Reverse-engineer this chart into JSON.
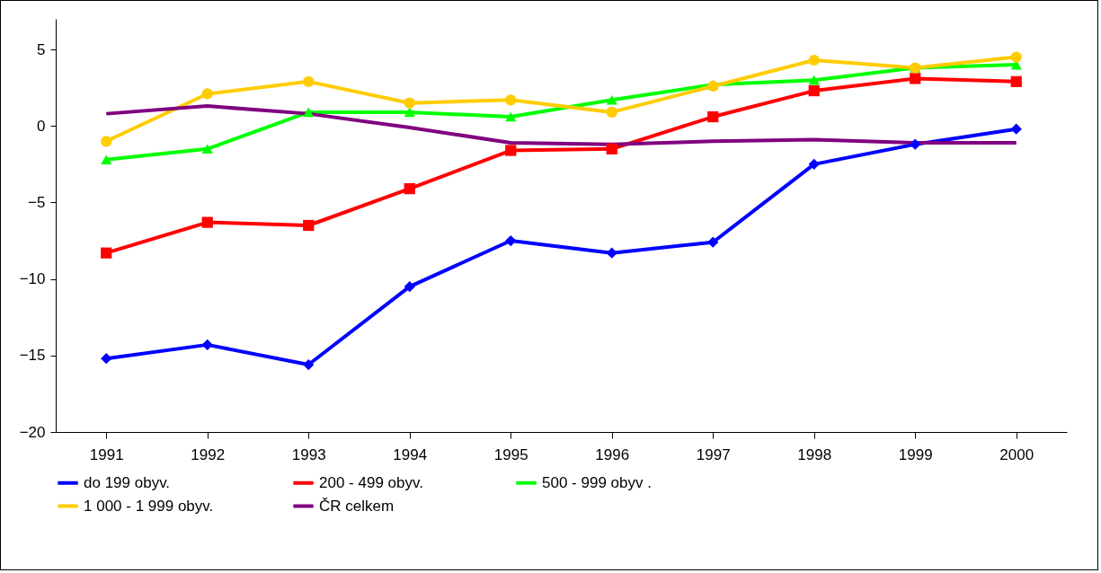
{
  "chart_data": {
    "type": "line",
    "categories": [
      "1991",
      "1992",
      "1993",
      "1994",
      "1995",
      "1996",
      "1997",
      "1998",
      "1999",
      "2000"
    ],
    "series": [
      {
        "name": "do  199 obyv.",
        "color": "#0000ff",
        "marker": "diamond",
        "values": [
          -15.2,
          -14.3,
          -15.6,
          -10.5,
          -7.5,
          -8.3,
          -7.6,
          -2.5,
          -1.2,
          -0.2
        ]
      },
      {
        "name": " 200 -    499 obyv.",
        "color": "#ff0000",
        "marker": "square",
        "values": [
          -8.3,
          -6.3,
          -6.5,
          -4.1,
          -1.6,
          -1.5,
          0.6,
          2.3,
          3.1,
          2.9
        ]
      },
      {
        "name": "500 -    999 obyv .",
        "color": "#00ff00",
        "marker": "triangle",
        "values": [
          -2.2,
          -1.5,
          0.9,
          0.9,
          0.6,
          1.7,
          2.7,
          3.0,
          3.8,
          4.0
        ]
      },
      {
        "name": "1 000 - 1 999 obyv.",
        "color": "#ffcc00",
        "marker": "circle",
        "values": [
          -1.0,
          2.1,
          2.9,
          1.5,
          1.7,
          0.9,
          2.6,
          4.3,
          3.8,
          4.5
        ]
      },
      {
        "name": "ČR celkem",
        "color": "#800080",
        "marker": "none",
        "values": [
          0.8,
          1.3,
          0.8,
          -0.1,
          -1.1,
          -1.2,
          -1.0,
          -0.9,
          -1.1,
          -1.1
        ]
      }
    ],
    "ylim": [
      -20,
      7
    ],
    "yticks": [
      -20,
      -15,
      -10,
      -5,
      0,
      5
    ],
    "grid": false,
    "legend": "bottom"
  }
}
